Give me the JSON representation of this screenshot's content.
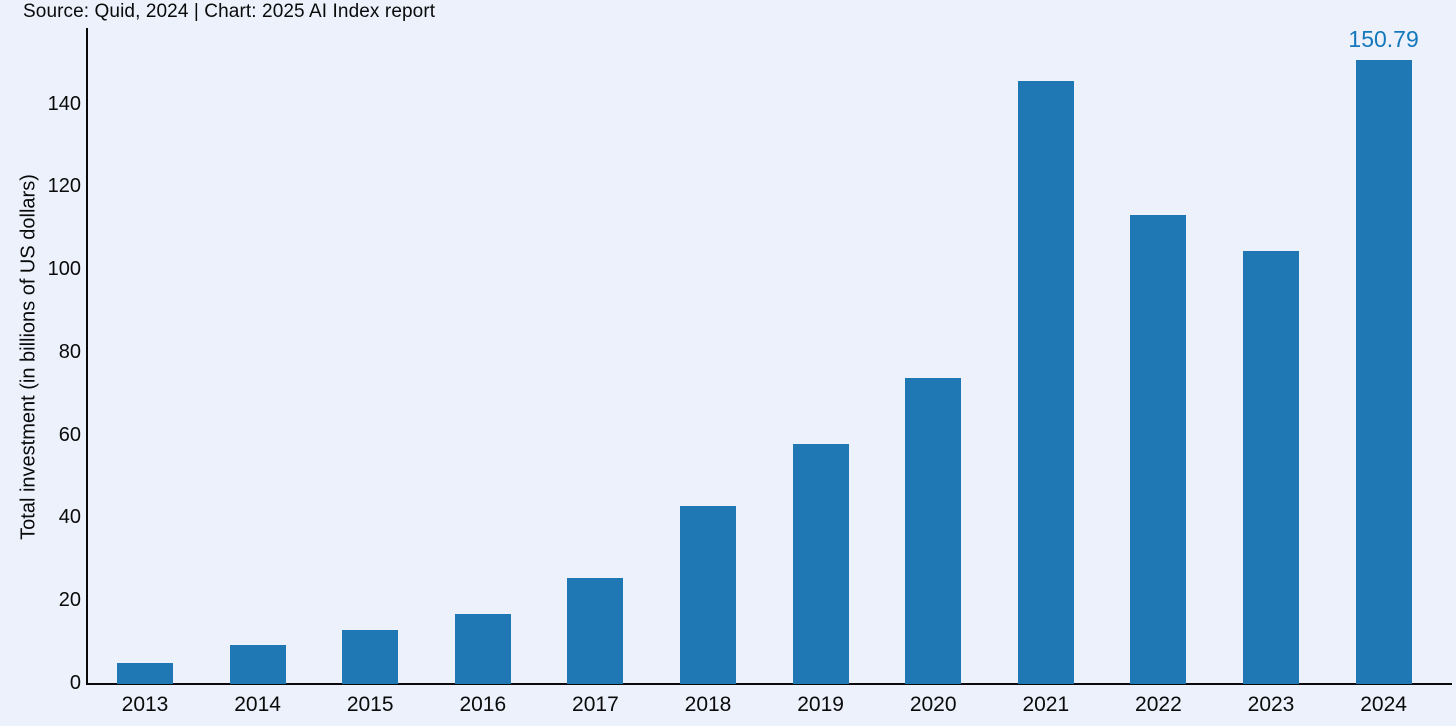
{
  "source_line": "Source: Quid, 2024 | Chart: 2025 AI Index report",
  "chart_data": {
    "type": "bar",
    "title": "",
    "xlabel": "",
    "ylabel": "Total investment (in billions of US dollars)",
    "categories": [
      "2013",
      "2014",
      "2015",
      "2016",
      "2017",
      "2018",
      "2019",
      "2020",
      "2021",
      "2022",
      "2023",
      "2024"
    ],
    "values": [
      5.1,
      9.4,
      13.1,
      16.9,
      25.6,
      43.1,
      58.1,
      73.9,
      145.8,
      113.4,
      104.7,
      150.79
    ],
    "yticks": [
      0,
      20,
      40,
      60,
      80,
      100,
      120,
      140
    ],
    "ylim": [
      0,
      158
    ],
    "grid": false,
    "legend": "none",
    "bar_color": "#1F77B4",
    "background_color": "#ECF1FC",
    "axis_color": "#0a0a0a",
    "annotation": {
      "category": "2024",
      "text": "150.79",
      "color": "#1478BC"
    }
  }
}
